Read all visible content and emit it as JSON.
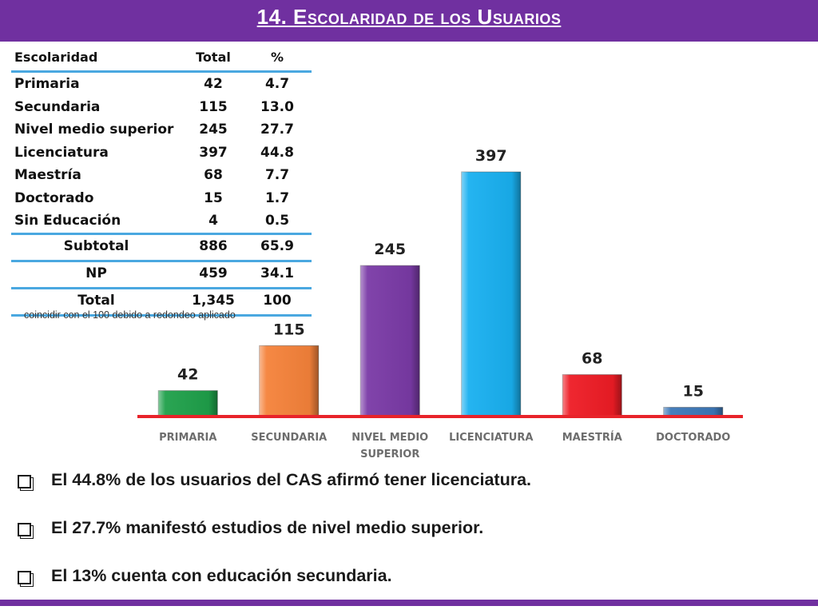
{
  "header": {
    "title": "14. Escolaridad de los Usuarios"
  },
  "table": {
    "headers": [
      "Escolaridad",
      "Total",
      "%"
    ],
    "rows": [
      {
        "name": "Primaria",
        "total": "42",
        "pct": "4.7"
      },
      {
        "name": "Secundaria",
        "total": "115",
        "pct": "13.0"
      },
      {
        "name": "Nivel medio superior",
        "total": "245",
        "pct": "27.7"
      },
      {
        "name": "Licenciatura",
        "total": "397",
        "pct": "44.8"
      },
      {
        "name": "Maestría",
        "total": "68",
        "pct": "7.7"
      },
      {
        "name": "Doctorado",
        "total": "15",
        "pct": "1.7"
      },
      {
        "name": "Sin Educación",
        "total": "4",
        "pct": "0.5"
      }
    ],
    "summary": [
      {
        "name": "Subtotal",
        "total": "886",
        "pct": "65.9"
      },
      {
        "name": "NP",
        "total": "459",
        "pct": "34.1"
      },
      {
        "name": "Total",
        "total": "1,345",
        "pct": "100"
      }
    ],
    "note": "coincidir con el 100 debido a redondeo aplicado"
  },
  "chart_data": {
    "type": "bar",
    "categories": [
      "PRIMARIA",
      "SECUNDARIA",
      "NIVEL MEDIO SUPERIOR",
      "LICENCIATURA",
      "MAESTRÍA",
      "DOCTORADO"
    ],
    "category_lines": [
      [
        "PRIMARIA"
      ],
      [
        "SECUNDARIA"
      ],
      [
        "NIVEL MEDIO",
        "SUPERIOR"
      ],
      [
        "LICENCIATURA"
      ],
      [
        "MAESTRÍA"
      ],
      [
        "DOCTORADO"
      ]
    ],
    "values": [
      42,
      115,
      245,
      397,
      68,
      15
    ],
    "colors": [
      "#1fa04a",
      "#f5823a",
      "#7a3aa6",
      "#19b0f0",
      "#ee1c25",
      "#3d78b8"
    ],
    "baseline_color": "#e8232a",
    "grid": false,
    "legend": "none"
  },
  "bullets": [
    "El 44.8% de los usuarios del CAS afirmó tener licenciatura.",
    "El 27.7% manifestó estudios de nivel medio superior.",
    "El 13% cuenta con educación secundaria."
  ],
  "colors": {
    "header": "#7030a0",
    "table_rule": "#4aa8e0"
  }
}
